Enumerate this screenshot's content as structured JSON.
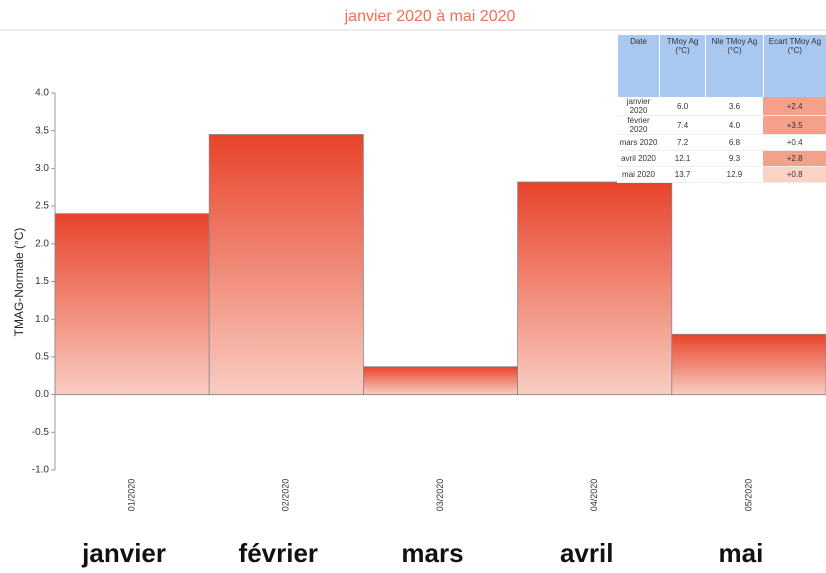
{
  "chart_data": {
    "type": "bar",
    "title": "janvier 2020 à mai 2020",
    "y_label": "TMAG-Normale (°C)",
    "categories": [
      "01/2020",
      "02/2020",
      "03/2020",
      "04/2020",
      "05/2020"
    ],
    "month_labels": [
      "janvier",
      "février",
      "mars",
      "avril",
      "mai"
    ],
    "values": [
      2.4,
      3.45,
      0.37,
      2.82,
      0.8
    ],
    "color": "#e8432a",
    "ylim": [
      -1.0,
      4.0
    ],
    "yticks": [
      {
        "value": -1,
        "label": "-1.0"
      },
      {
        "value": -0.5,
        "label": "-0.5"
      },
      {
        "value": 0,
        "label": "0.0"
      },
      {
        "value": 0.5,
        "label": "0.5"
      },
      {
        "value": 1,
        "label": "1.0"
      },
      {
        "value": 1.5,
        "label": "1.5"
      },
      {
        "value": 2,
        "label": "2.0"
      },
      {
        "value": 2.5,
        "label": "2.5"
      },
      {
        "value": 3,
        "label": "3.0"
      },
      {
        "value": 3.5,
        "label": "3.5"
      },
      {
        "value": 4,
        "label": "4.0"
      }
    ],
    "grid": false,
    "table": {
      "header": [
        "Date",
        "TMoy Ag (°C)",
        "Nle TMoy Ag (°C)",
        "Ecart TMoy Ag (°C)"
      ],
      "rows": [
        [
          "janvier 2020",
          "6.0",
          "3.6",
          "+2.4"
        ],
        [
          "février 2020",
          "7.4",
          "4.0",
          "+3.5"
        ],
        [
          "mars 2020",
          "7.2",
          "6.8",
          "+0.4"
        ],
        [
          "avril 2020",
          "12.1",
          "9.3",
          "+2.8"
        ],
        [
          "mai 2020",
          "13.7",
          "12.9",
          "+0.8"
        ]
      ]
    }
  }
}
